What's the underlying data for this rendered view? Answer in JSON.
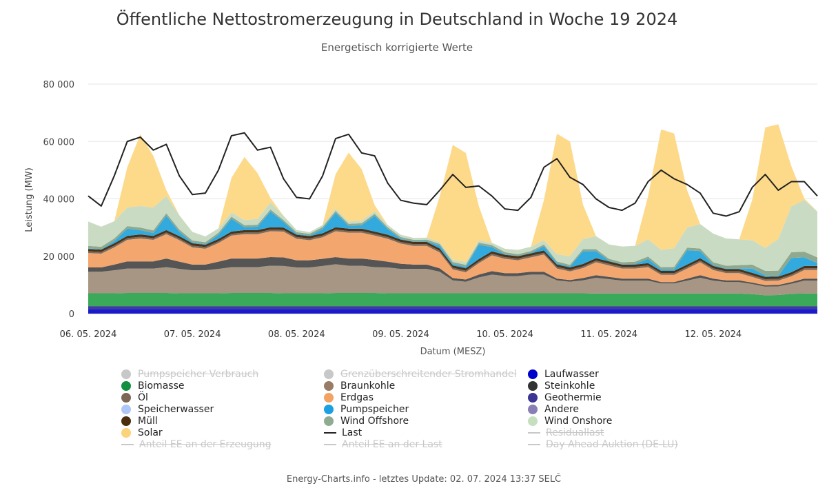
{
  "chart_data": {
    "type": "area",
    "title": "Öffentliche Nettostromerzeugung in Deutschland in Woche 19 2024",
    "subtitle": "Energetisch korrigierte Werte",
    "xlabel": "Datum (MESZ)",
    "ylabel": "Leistung (MW)",
    "ylim": [
      0,
      80000
    ],
    "yticks": [
      "0",
      "20 000",
      "40 000",
      "60 000",
      "80 000"
    ],
    "yticks_values": [
      0,
      20000,
      40000,
      60000,
      80000
    ],
    "x_range": [
      "06.05.2024 00:00",
      "12.05.2024 23:00"
    ],
    "xticks": [
      "06. 05. 2024",
      "07. 05. 2024",
      "08. 05. 2024",
      "09. 05. 2024",
      "10. 05. 2024",
      "11. 05. 2024",
      "12. 05. 2024"
    ],
    "grid": true,
    "stacked": true,
    "x": [
      "06.05. 00:00",
      "06.05. 03:00",
      "06.05. 06:00",
      "06.05. 09:00",
      "06.05. 12:00",
      "06.05. 15:00",
      "06.05. 18:00",
      "06.05. 21:00",
      "07.05. 00:00",
      "07.05. 03:00",
      "07.05. 06:00",
      "07.05. 09:00",
      "07.05. 12:00",
      "07.05. 15:00",
      "07.05. 18:00",
      "07.05. 21:00",
      "08.05. 00:00",
      "08.05. 03:00",
      "08.05. 06:00",
      "08.05. 09:00",
      "08.05. 12:00",
      "08.05. 15:00",
      "08.05. 18:00",
      "08.05. 21:00",
      "09.05. 00:00",
      "09.05. 03:00",
      "09.05. 06:00",
      "09.05. 09:00",
      "09.05. 12:00",
      "09.05. 15:00",
      "09.05. 18:00",
      "09.05. 21:00",
      "10.05. 00:00",
      "10.05. 03:00",
      "10.05. 06:00",
      "10.05. 09:00",
      "10.05. 12:00",
      "10.05. 15:00",
      "10.05. 18:00",
      "10.05. 21:00",
      "11.05. 00:00",
      "11.05. 03:00",
      "11.05. 06:00",
      "11.05. 09:00",
      "11.05. 12:00",
      "11.05. 15:00",
      "11.05. 18:00",
      "11.05. 21:00",
      "12.05. 00:00",
      "12.05. 03:00",
      "12.05. 06:00",
      "12.05. 09:00",
      "12.05. 12:00",
      "12.05. 15:00",
      "12.05. 18:00",
      "12.05. 21:00",
      "12.05. 23:00"
    ],
    "series": [
      {
        "name": "Laufwasser",
        "color": "#1a1acc",
        "values": [
          1600,
          1600,
          1600,
          1600,
          1600,
          1600,
          1600,
          1600,
          1600,
          1600,
          1600,
          1600,
          1600,
          1600,
          1600,
          1600,
          1600,
          1600,
          1600,
          1600,
          1600,
          1600,
          1600,
          1600,
          1600,
          1600,
          1600,
          1600,
          1600,
          1600,
          1600,
          1600,
          1600,
          1600,
          1600,
          1600,
          1600,
          1600,
          1600,
          1600,
          1600,
          1600,
          1600,
          1600,
          1600,
          1600,
          1600,
          1600,
          1600,
          1600,
          1600,
          1600,
          1600,
          1600,
          1600,
          1600,
          1600
        ]
      },
      {
        "name": "Geothermie",
        "color": "#3d3d99",
        "values": [
          1000,
          1000,
          1000,
          1000,
          1000,
          1000,
          1000,
          1000,
          1000,
          1000,
          1000,
          1000,
          1000,
          1000,
          1000,
          1000,
          1000,
          1000,
          1000,
          1000,
          1000,
          1000,
          1000,
          1000,
          1000,
          1000,
          1000,
          1000,
          1000,
          1000,
          1000,
          1000,
          1000,
          1000,
          1000,
          1000,
          1000,
          1000,
          1000,
          1000,
          1000,
          1000,
          1000,
          1000,
          1000,
          1000,
          1000,
          1000,
          1000,
          1000,
          1000,
          1000,
          1000,
          1000,
          1000,
          1000,
          1000
        ]
      },
      {
        "name": "Biomasse",
        "color": "#3aaa5a",
        "values": [
          4500,
          4500,
          4500,
          4600,
          4600,
          4600,
          4600,
          4500,
          4500,
          4500,
          4500,
          4600,
          4600,
          4600,
          4600,
          4500,
          4500,
          4500,
          4500,
          4600,
          4600,
          4600,
          4600,
          4500,
          4500,
          4500,
          4500,
          4500,
          4500,
          4500,
          4500,
          4500,
          4500,
          4500,
          4500,
          4500,
          4500,
          4500,
          4500,
          4400,
          4400,
          4400,
          4400,
          4400,
          4400,
          4400,
          4400,
          4400,
          4400,
          4400,
          4400,
          4200,
          3800,
          3900,
          4300,
          4400,
          4400
        ]
      },
      {
        "name": "Braunkohle",
        "color": "#a89684",
        "values": [
          7500,
          7500,
          8000,
          8500,
          8500,
          8500,
          9000,
          8500,
          8000,
          8000,
          8500,
          9000,
          9000,
          9000,
          9500,
          9500,
          9000,
          9000,
          9500,
          10000,
          9500,
          9500,
          9000,
          9000,
          8500,
          8500,
          8500,
          7500,
          4500,
          4000,
          5500,
          6500,
          6000,
          6000,
          6500,
          6500,
          4500,
          4000,
          4500,
          5500,
          5000,
          4500,
          4500,
          4500,
          3500,
          3500,
          4500,
          5500,
          4500,
          4000,
          4000,
          3500,
          3000,
          3000,
          3500,
          4500,
          4500
        ]
      },
      {
        "name": "Steinkohle",
        "color": "#555555",
        "values": [
          1500,
          1500,
          2000,
          2500,
          2500,
          2500,
          3000,
          2500,
          2000,
          2000,
          2500,
          3000,
          3000,
          3000,
          3000,
          3000,
          2500,
          2500,
          2500,
          2500,
          2500,
          2500,
          2500,
          2000,
          1800,
          1500,
          1500,
          1200,
          800,
          800,
          1000,
          1200,
          1000,
          1000,
          1000,
          1000,
          600,
          600,
          800,
          900,
          800,
          700,
          700,
          700,
          500,
          500,
          700,
          900,
          700,
          600,
          600,
          500,
          500,
          500,
          600,
          700,
          700
        ]
      },
      {
        "name": "Erdgas",
        "color": "#f3a66e",
        "values": [
          5000,
          4800,
          6000,
          7500,
          8000,
          7500,
          8500,
          7500,
          6000,
          5500,
          6500,
          8000,
          8500,
          8500,
          9000,
          9000,
          7500,
          7000,
          7500,
          9000,
          9000,
          9000,
          8500,
          8000,
          7000,
          6500,
          6500,
          5500,
          3000,
          2500,
          4000,
          5500,
          5000,
          4500,
          5000,
          6000,
          3500,
          3000,
          3500,
          4500,
          4000,
          3500,
          3500,
          4000,
          2500,
          2500,
          3500,
          4500,
          3000,
          2500,
          2500,
          2000,
          1500,
          1500,
          2000,
          3000,
          3000
        ]
      },
      {
        "name": "Öl",
        "color": "#7d6b5d",
        "values": [
          600,
          600,
          600,
          600,
          600,
          600,
          600,
          600,
          600,
          600,
          600,
          600,
          600,
          600,
          600,
          600,
          600,
          600,
          600,
          600,
          600,
          600,
          600,
          600,
          600,
          600,
          600,
          600,
          600,
          600,
          600,
          600,
          600,
          600,
          600,
          600,
          600,
          600,
          600,
          600,
          600,
          600,
          600,
          600,
          600,
          600,
          600,
          600,
          600,
          600,
          600,
          600,
          600,
          600,
          600,
          600,
          600
        ]
      },
      {
        "name": "Müll",
        "color": "#4a3318",
        "values": [
          800,
          800,
          800,
          800,
          800,
          800,
          800,
          800,
          800,
          800,
          800,
          800,
          800,
          800,
          800,
          800,
          800,
          800,
          800,
          800,
          800,
          800,
          800,
          800,
          800,
          800,
          800,
          800,
          800,
          800,
          800,
          800,
          800,
          800,
          800,
          800,
          800,
          800,
          800,
          800,
          800,
          800,
          800,
          800,
          800,
          800,
          800,
          800,
          800,
          800,
          800,
          800,
          800,
          800,
          800,
          800,
          800
        ]
      },
      {
        "name": "Pumpspeicher",
        "color": "#33aadd",
        "values": [
          200,
          100,
          800,
          2500,
          1500,
          1000,
          5000,
          1500,
          300,
          200,
          1500,
          4500,
          1000,
          1200,
          5500,
          2000,
          300,
          200,
          1500,
          5000,
          1000,
          1200,
          5500,
          2000,
          300,
          100,
          200,
          1000,
          500,
          500,
          5000,
          1500,
          200,
          100,
          200,
          1500,
          500,
          300,
          4500,
          2500,
          200,
          100,
          200,
          1500,
          500,
          500,
          5000,
          2500,
          300,
          200,
          200,
          1500,
          500,
          300,
          5000,
          3000,
          1000
        ]
      },
      {
        "name": "Wind Offshore",
        "color": "#8fa990",
        "values": [
          900,
          900,
          900,
          900,
          900,
          900,
          900,
          800,
          700,
          700,
          700,
          700,
          700,
          700,
          700,
          600,
          600,
          600,
          700,
          700,
          700,
          700,
          700,
          600,
          600,
          600,
          600,
          600,
          700,
          700,
          700,
          700,
          700,
          600,
          600,
          600,
          600,
          600,
          700,
          700,
          700,
          700,
          800,
          800,
          800,
          900,
          900,
          900,
          1000,
          1000,
          1200,
          1400,
          1600,
          1800,
          2000,
          2000,
          2000
        ]
      },
      {
        "name": "Wind Onshore",
        "color": "#c9dcc3",
        "values": [
          8500,
          7000,
          6000,
          6500,
          7500,
          8000,
          6000,
          5000,
          3000,
          2000,
          1500,
          1500,
          1800,
          2000,
          2500,
          1500,
          800,
          600,
          700,
          800,
          800,
          900,
          1000,
          800,
          800,
          700,
          700,
          600,
          800,
          1000,
          800,
          800,
          1200,
          1500,
          1500,
          1500,
          2500,
          3000,
          3500,
          4500,
          5000,
          5500,
          5500,
          6000,
          6000,
          6500,
          7000,
          8500,
          10000,
          9500,
          9000,
          8500,
          8000,
          11000,
          16000,
          18000,
          16000
        ]
      },
      {
        "name": "Solar",
        "color": "#fdd98a",
        "values": [
          0,
          0,
          0,
          14000,
          25000,
          18000,
          2000,
          0,
          0,
          0,
          0,
          12000,
          22000,
          16000,
          1500,
          0,
          0,
          0,
          0,
          12000,
          24000,
          18000,
          2000,
          0,
          0,
          0,
          0,
          16000,
          40000,
          38000,
          12000,
          0,
          0,
          0,
          0,
          14000,
          42000,
          40000,
          12000,
          0,
          0,
          0,
          0,
          15000,
          42000,
          40000,
          13000,
          0,
          0,
          0,
          0,
          14000,
          42000,
          40000,
          14000,
          500,
          0
        ]
      }
    ],
    "last_series": {
      "name": "Last",
      "color": "#222222",
      "values": [
        41000,
        37500,
        48000,
        60000,
        61500,
        57000,
        59000,
        48000,
        41500,
        42000,
        50000,
        62000,
        63000,
        57000,
        58000,
        47000,
        40500,
        40000,
        48000,
        61000,
        62500,
        56000,
        55000,
        45500,
        39500,
        38500,
        38000,
        43000,
        48500,
        44000,
        44500,
        41000,
        36500,
        36000,
        40500,
        51000,
        54000,
        47500,
        45000,
        40000,
        37000,
        36000,
        38500,
        46000,
        50000,
        47000,
        45000,
        42000,
        35000,
        34000,
        35500,
        44000,
        48500,
        43000,
        46000,
        46000,
        41000
      ]
    },
    "legend": [
      {
        "name": "Pumpspeicher Verbrauch",
        "symbol": "dot",
        "color": "#c8c8c8",
        "active": false
      },
      {
        "name": "Grenzüberschreitender Stromhandel",
        "symbol": "dot",
        "color": "#c8c8c8",
        "active": false
      },
      {
        "name": "Laufwasser",
        "symbol": "dot",
        "color": "#0000cc",
        "active": true
      },
      {
        "name": "Biomasse",
        "symbol": "dot",
        "color": "#109040",
        "active": true
      },
      {
        "name": "Braunkohle",
        "symbol": "dot",
        "color": "#9a7b66",
        "active": true
      },
      {
        "name": "Steinkohle",
        "symbol": "dot",
        "color": "#333333",
        "active": true
      },
      {
        "name": "Öl",
        "symbol": "dot",
        "color": "#7d6654",
        "active": true
      },
      {
        "name": "Erdgas",
        "symbol": "dot",
        "color": "#f4a261",
        "active": true
      },
      {
        "name": "Geothermie",
        "symbol": "dot",
        "color": "#3c3593",
        "active": true
      },
      {
        "name": "Speicherwasser",
        "symbol": "dot",
        "color": "#aec7f7",
        "active": true
      },
      {
        "name": "Pumpspeicher",
        "symbol": "dot",
        "color": "#1ba1e2",
        "active": true
      },
      {
        "name": "Andere",
        "symbol": "dot",
        "color": "#8a7fb5",
        "active": true
      },
      {
        "name": "Müll",
        "symbol": "dot",
        "color": "#4a2e0e",
        "active": true
      },
      {
        "name": "Wind Offshore",
        "symbol": "dot",
        "color": "#8fac93",
        "active": true
      },
      {
        "name": "Wind Onshore",
        "symbol": "dot",
        "color": "#c5dfbf",
        "active": true
      },
      {
        "name": "Solar",
        "symbol": "dot",
        "color": "#fcd27a",
        "active": true
      },
      {
        "name": "Last",
        "symbol": "line",
        "color": "#222222",
        "active": true
      },
      {
        "name": "Residuallast",
        "symbol": "line",
        "color": "#c8c8c8",
        "active": false
      },
      {
        "name": "Anteil EE an der Erzeugung",
        "symbol": "line",
        "color": "#c8c8c8",
        "active": false
      },
      {
        "name": "Anteil EE an der Last",
        "symbol": "line",
        "color": "#c8c8c8",
        "active": false
      },
      {
        "name": "Day Ahead Auktion (DE-LU)",
        "symbol": "line",
        "color": "#c8c8c8",
        "active": false
      }
    ]
  },
  "footer": "Energy-Charts.info - letztes Update: 02. 07. 2024 13:37 SELČ"
}
